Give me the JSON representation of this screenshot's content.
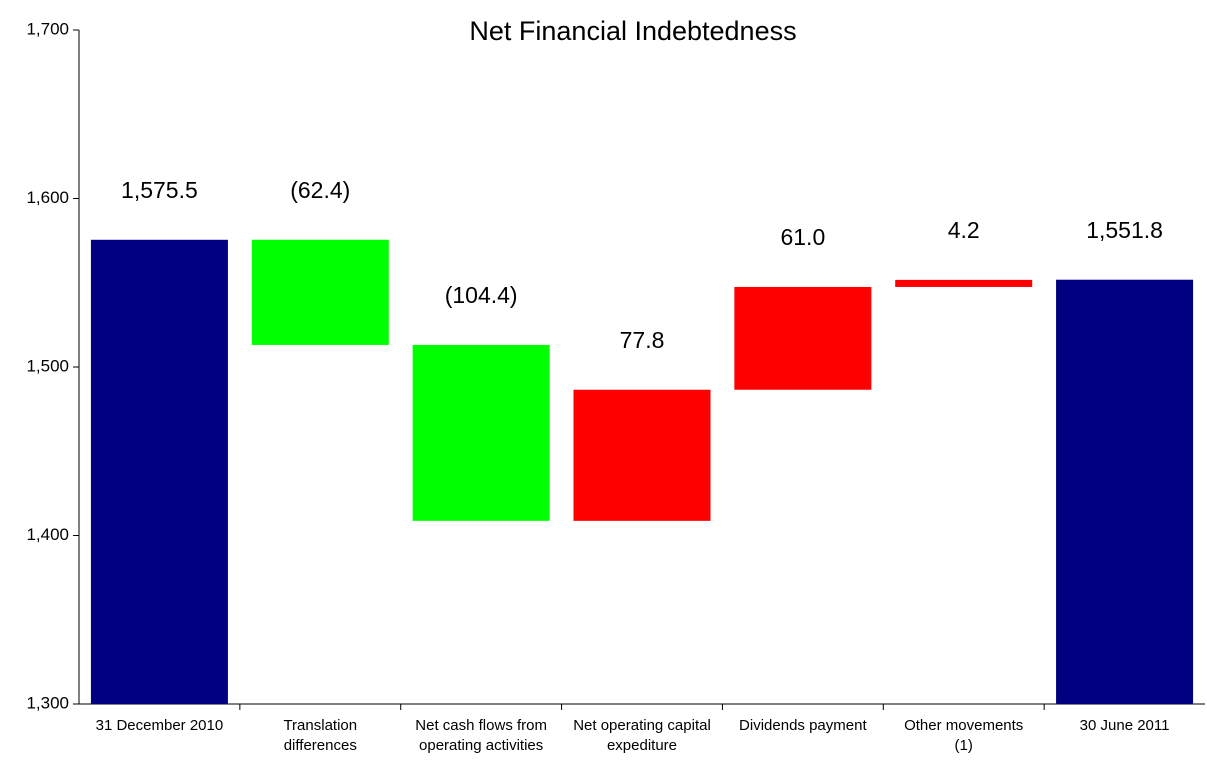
{
  "chart_data": {
    "type": "waterfall",
    "title": "Net Financial Indebtedness",
    "categories": [
      "31 December 2010",
      "Translation differences",
      "Net cash flows from operating activities",
      "Net operating capital expediture",
      "Dividends payment",
      "Other movements (1)",
      "30 June 2011"
    ],
    "values": [
      1575.5,
      -62.4,
      -104.4,
      77.8,
      61.0,
      4.2,
      1551.8
    ],
    "value_labels": [
      "1,575.5",
      "(62.4)",
      "(104.4)",
      "77.8",
      "61.0",
      "4.2",
      "1,551.8"
    ],
    "is_total": [
      true,
      false,
      false,
      false,
      false,
      false,
      true
    ],
    "colors": {
      "total": "#000080",
      "decrease": "#00ff00",
      "increase": "#ff0000"
    },
    "ylim": [
      1300,
      1700
    ],
    "yticks": [
      {
        "value": 1300,
        "label": "1,300"
      },
      {
        "value": 1400,
        "label": "1,400"
      },
      {
        "value": 1500,
        "label": "1,500"
      },
      {
        "value": 1600,
        "label": "1,600"
      },
      {
        "value": 1700,
        "label": "1,700"
      }
    ]
  }
}
